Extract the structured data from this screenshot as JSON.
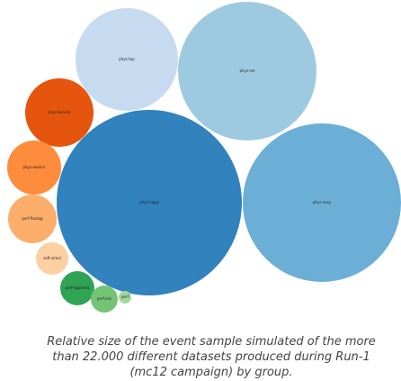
{
  "chart_data": {
    "type": "bubble",
    "title": "",
    "legend": "none",
    "bubbles": [
      {
        "label": "phys-higgs",
        "color": "#3182bd"
      },
      {
        "label": "phys-susy",
        "color": "#6baed6"
      },
      {
        "label": "phys-sm",
        "color": "#9ecae1"
      },
      {
        "label": "phys-top",
        "color": "#c6dbef"
      },
      {
        "label": "phys-beauty",
        "color": "#e6550d"
      },
      {
        "label": "phys-exotics",
        "color": "#fd8d3c"
      },
      {
        "label": "perf-flavtag",
        "color": "#fdae6b"
      },
      {
        "label": "soft-simul",
        "color": "#fdd0a2"
      },
      {
        "label": "perf-egamma",
        "color": "#31a354"
      },
      {
        "label": "perf-jets",
        "color": "#74c476"
      },
      {
        "label": "perf",
        "color": "#a1d99b"
      }
    ]
  },
  "caption": "Relative size of the event sample simulated of the more than 22.000 different datasets produced during Run-1 (mc12 campaign) by group."
}
